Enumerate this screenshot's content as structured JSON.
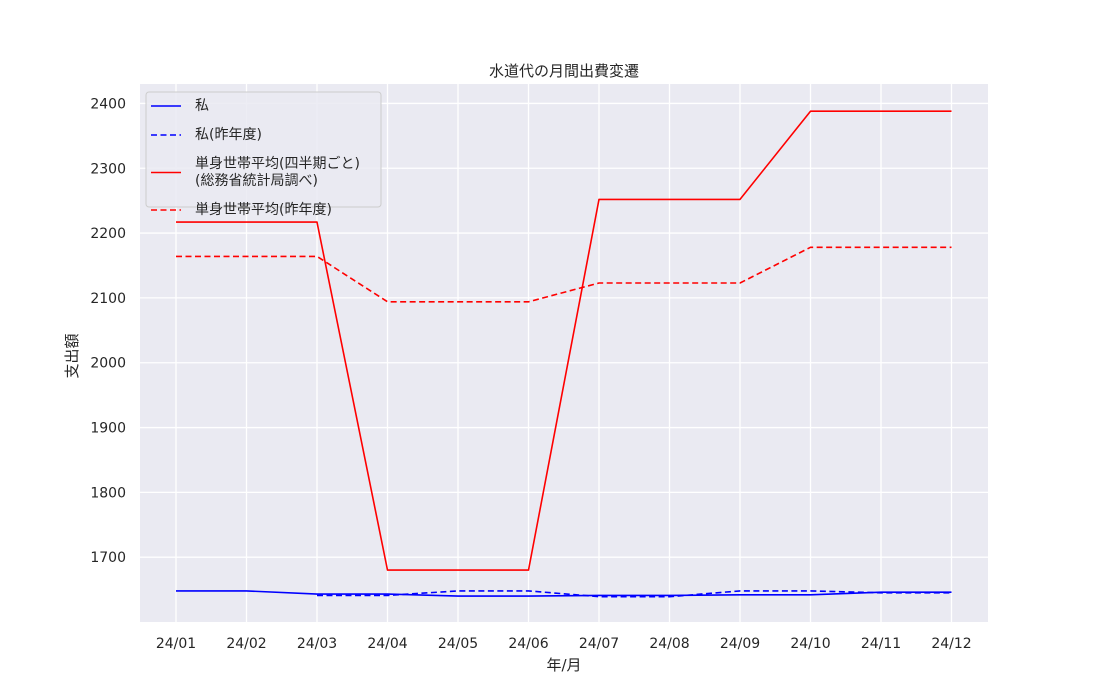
{
  "chart_data": {
    "type": "line",
    "title": "水道代の月間出費変遷",
    "xlabel": "年/月",
    "ylabel": "支出額",
    "categories": [
      "24/01",
      "24/02",
      "24/03",
      "24/04",
      "24/05",
      "24/06",
      "24/07",
      "24/08",
      "24/09",
      "24/10",
      "24/11",
      "24/12"
    ],
    "ylim": [
      1600,
      2430
    ],
    "yticks": [
      1700,
      1800,
      1900,
      2000,
      2100,
      2200,
      2300,
      2400
    ],
    "grid": true,
    "legend_position": "top-left",
    "series": [
      {
        "name": "私",
        "color": "#0000ff",
        "style": "solid",
        "values": [
          1648,
          1648,
          1643,
          1643,
          1640,
          1640,
          1641,
          1641,
          1642,
          1642,
          1646,
          1646
        ]
      },
      {
        "name": "私(昨年度)",
        "color": "#0000ff",
        "style": "dashed",
        "values": [
          null,
          null,
          1641,
          1641,
          1648,
          1648,
          1639,
          1639,
          1648,
          1648,
          1645,
          1645
        ]
      },
      {
        "name": "単身世帯平均(四半期ごと)\n(総務省統計局調べ)",
        "color": "#ff0000",
        "style": "solid",
        "values": [
          2217,
          2217,
          2217,
          1680,
          1680,
          1680,
          2252,
          2252,
          2252,
          2388,
          2388,
          2388
        ]
      },
      {
        "name": "単身世帯平均(昨年度)",
        "color": "#ff0000",
        "style": "dashed",
        "values": [
          2164,
          2164,
          2164,
          2094,
          2094,
          2094,
          2123,
          2123,
          2123,
          2178,
          2178,
          2178
        ]
      }
    ]
  }
}
